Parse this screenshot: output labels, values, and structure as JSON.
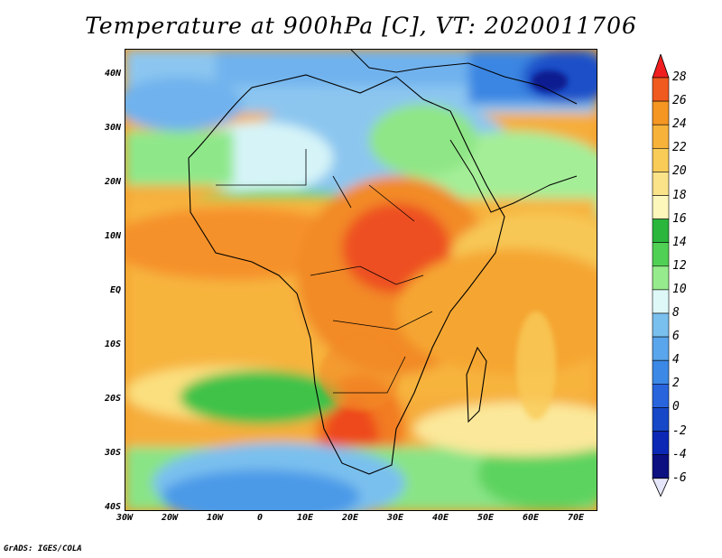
{
  "title": "Temperature at 900hPa [C], VT: 2020011706",
  "footer": "GrADS: IGES/COLA",
  "chart_data": {
    "type": "heatmap",
    "variable": "Temperature",
    "level": "900hPa",
    "units": "C",
    "valid_time": "2020011706",
    "lon_range": [
      -30,
      75
    ],
    "lat_range": [
      -40,
      45
    ],
    "y_ticks": [
      "40N",
      "30N",
      "20N",
      "10N",
      "EQ",
      "10S",
      "20S",
      "30S",
      "40S"
    ],
    "x_ticks": [
      "30W",
      "20W",
      "10W",
      "0",
      "10E",
      "20E",
      "30E",
      "40E",
      "50E",
      "60E",
      "70E"
    ],
    "colorbar": {
      "labels": [
        "28",
        "26",
        "24",
        "22",
        "20",
        "18",
        "16",
        "14",
        "12",
        "10",
        "8",
        "6",
        "4",
        "2",
        "0",
        "-2",
        "-4",
        "-6"
      ],
      "colors": [
        "#f01e1e",
        "#f05a1e",
        "#f59623",
        "#f7b23a",
        "#f9cc58",
        "#fbe38a",
        "#fdf7bc",
        "#2ab63c",
        "#50d054",
        "#96ec8c",
        "#def8f8",
        "#7ac0ee",
        "#5aa6ec",
        "#3c88e6",
        "#2864dc",
        "#1648c8",
        "#0c28b4",
        "#0c1080",
        "#e6e6fa"
      ]
    }
  }
}
